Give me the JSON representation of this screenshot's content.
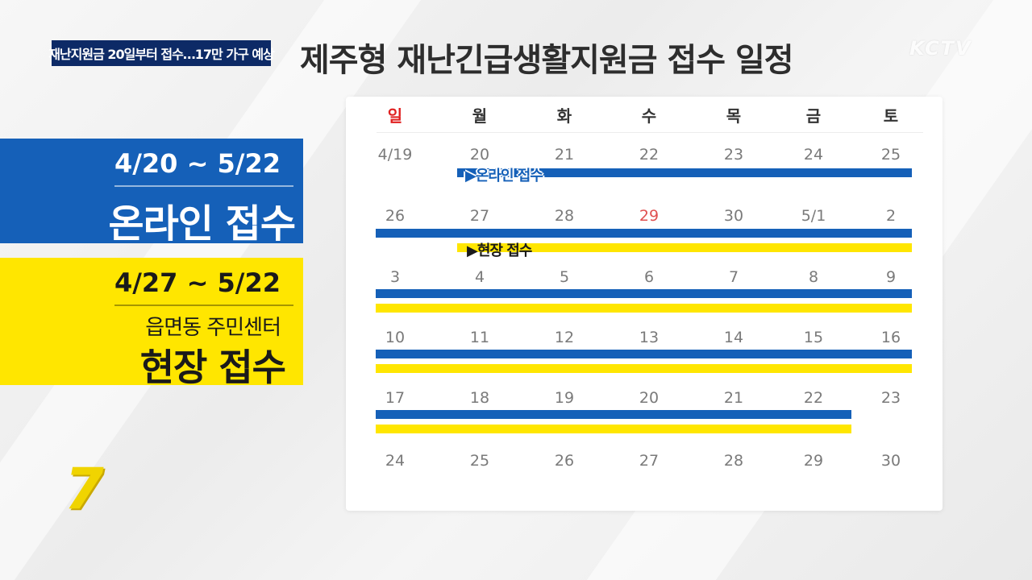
{
  "header": {
    "tag": "재난지원금 20일부터 접수…17만 가구 예상",
    "title": "제주형 재난긴급생활지원금 접수 일정",
    "logo": "KCTV"
  },
  "online_panel": {
    "dates": "4/20 ~ 5/22",
    "label": "온라인 접수"
  },
  "onsite_panel": {
    "dates": "4/27 ~ 5/22",
    "subtitle": "읍면동 주민센터",
    "label": "현장 접수"
  },
  "corner_badge": "7",
  "calendar": {
    "weekdays": [
      "일",
      "월",
      "화",
      "수",
      "목",
      "금",
      "토"
    ],
    "weeks": [
      [
        "4/19",
        "20",
        "21",
        "22",
        "23",
        "24",
        "25"
      ],
      [
        "26",
        "27",
        "28",
        "29",
        "30",
        "5/1",
        "2"
      ],
      [
        "3",
        "4",
        "5",
        "6",
        "7",
        "8",
        "9"
      ],
      [
        "10",
        "11",
        "12",
        "13",
        "14",
        "15",
        "16"
      ],
      [
        "17",
        "18",
        "19",
        "20",
        "21",
        "22",
        "23"
      ],
      [
        "24",
        "25",
        "26",
        "27",
        "28",
        "29",
        "30"
      ]
    ],
    "online_bar_label": "▶온라인 접수",
    "onsite_bar_label": "▶현장 접수"
  },
  "colors": {
    "blue": "#1560b8",
    "yellow": "#ffe600",
    "navy": "#0d2a66",
    "sunday_red": "#e02020",
    "holiday_red": "#e05050"
  }
}
